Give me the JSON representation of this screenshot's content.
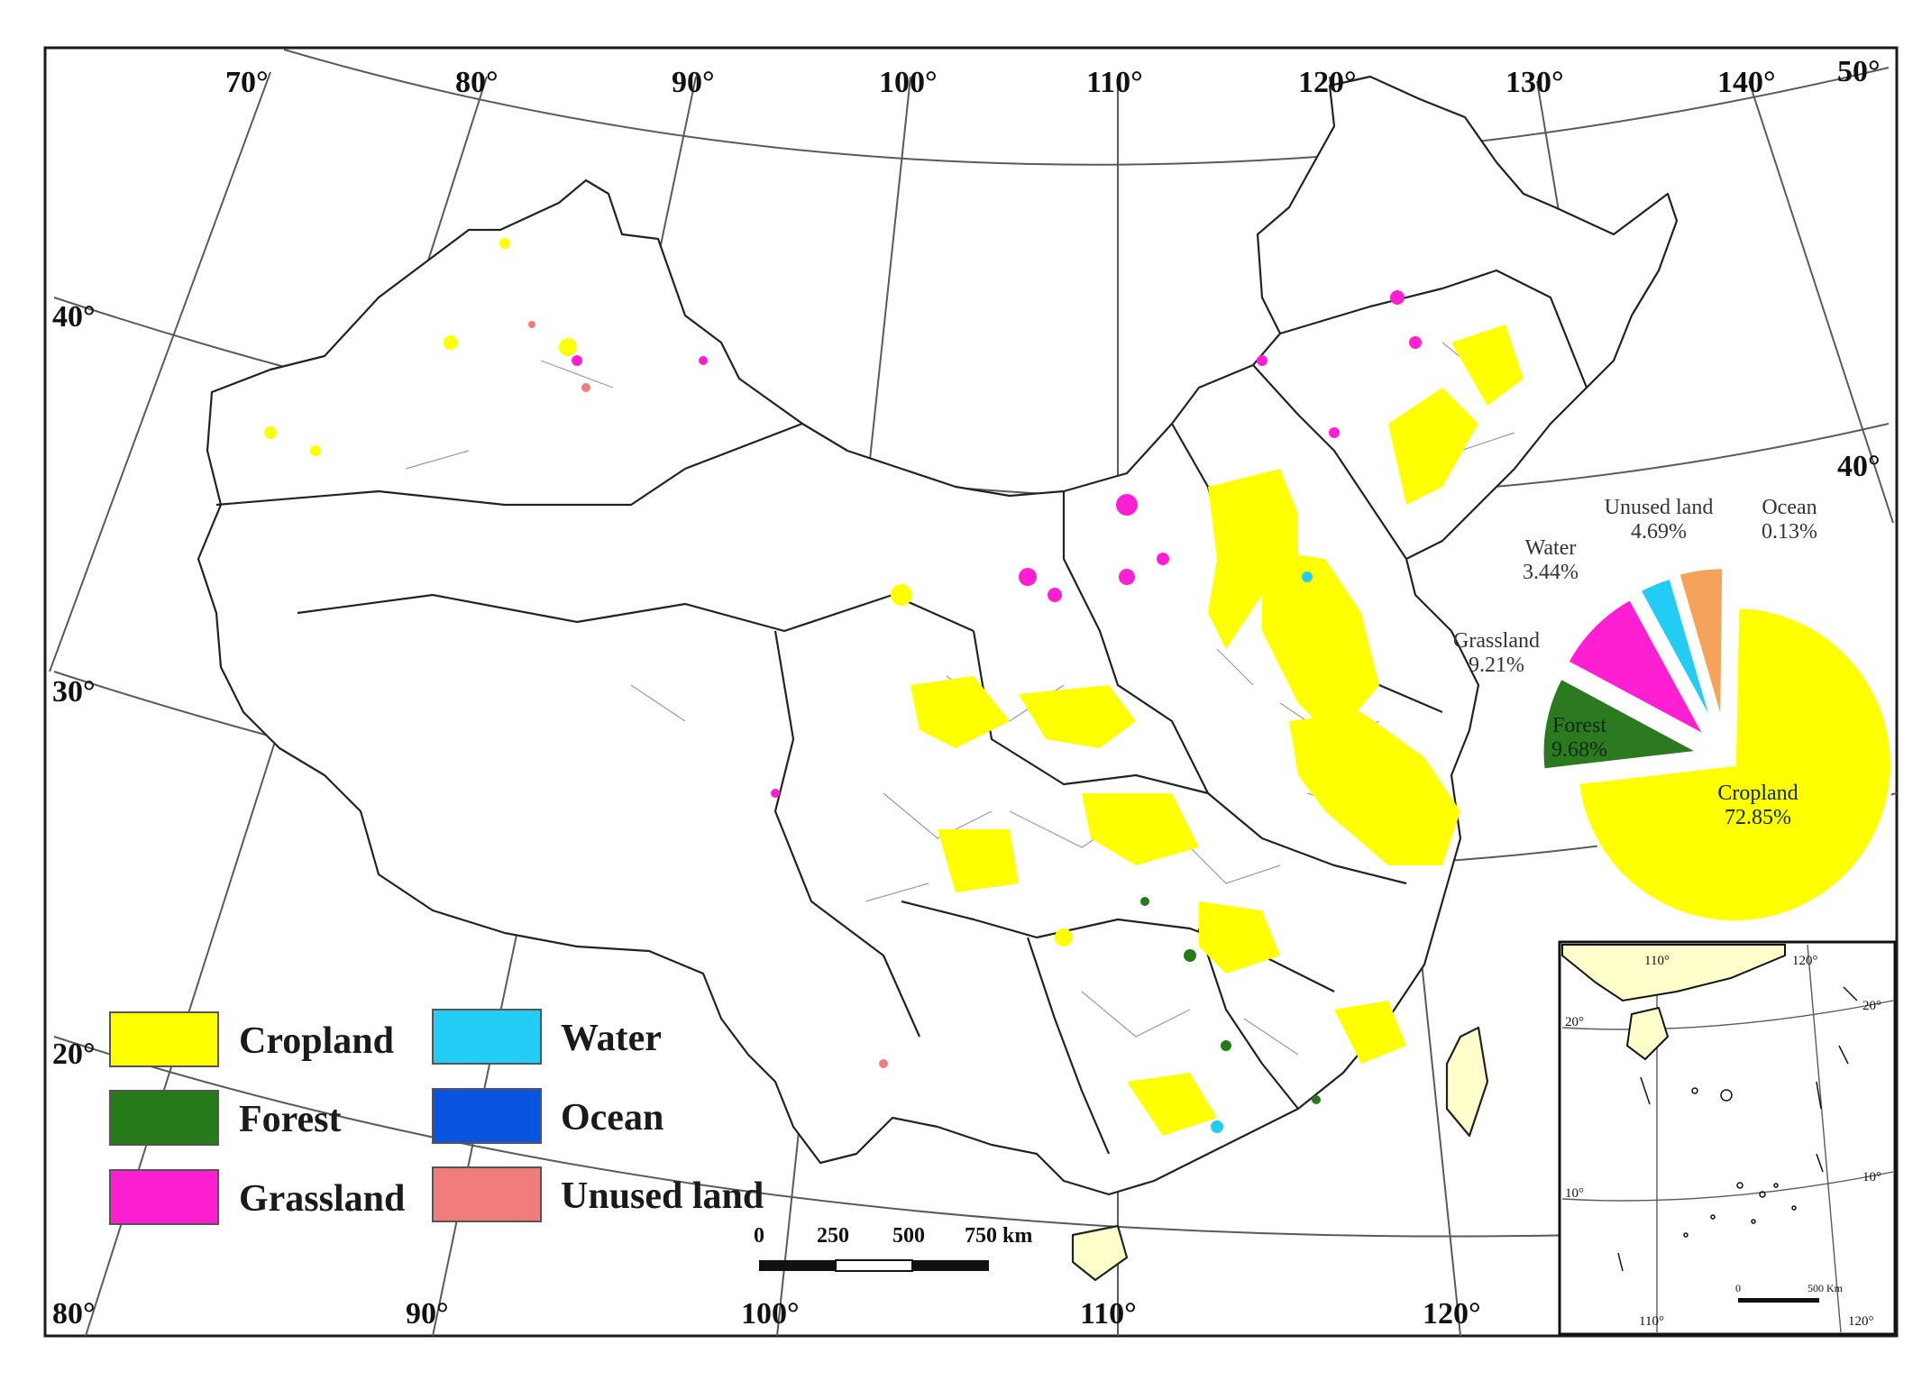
{
  "map": {
    "top_longitude_labels": [
      "70°",
      "80°",
      "90°",
      "100°",
      "110°",
      "120°",
      "130°",
      "140°"
    ],
    "bottom_longitude_labels": [
      "80°",
      "90°",
      "100°",
      "110°",
      "120°"
    ],
    "left_latitude_labels": [
      "40°",
      "30°",
      "20°"
    ],
    "right_latitude_labels": [
      "50°",
      "40°"
    ]
  },
  "legend": {
    "items": [
      {
        "label": "Cropland",
        "color": "#ffff00"
      },
      {
        "label": "Forest",
        "color": "#267a1a"
      },
      {
        "label": "Grassland",
        "color": "#ff1fd2"
      },
      {
        "label": "Water",
        "color": "#22ccf5"
      },
      {
        "label": "Ocean",
        "color": "#0a55e0"
      },
      {
        "label": "Unused land",
        "color": "#f07c7c"
      }
    ]
  },
  "scale_bar": {
    "labels": [
      "0",
      "250",
      "500",
      "750 km"
    ]
  },
  "pie": {
    "slices": [
      {
        "name": "Cropland",
        "percent_label": "72.85%",
        "value": 72.85,
        "color": "#ffff00"
      },
      {
        "name": "Forest",
        "percent_label": "9.68%",
        "value": 9.68,
        "color": "#2b7a1f"
      },
      {
        "name": "Grassland",
        "percent_label": "9.21%",
        "value": 9.21,
        "color": "#ff1fd2"
      },
      {
        "name": "Water",
        "percent_label": "3.44%",
        "value": 3.44,
        "color": "#22ccf5"
      },
      {
        "name": "Unused land",
        "percent_label": "4.69%",
        "value": 4.69,
        "color": "#f5a35a"
      },
      {
        "name": "Ocean",
        "percent_label": "0.13%",
        "value": 0.13,
        "color": "#777777"
      }
    ]
  },
  "inset": {
    "top_labels": [
      "110°",
      "120°"
    ],
    "bottom_labels": [
      "110°",
      "120°"
    ],
    "left_labels": [
      "20°",
      "10°"
    ],
    "right_labels": [
      "20°",
      "10°"
    ],
    "scale_labels": [
      "0",
      "500 Km"
    ]
  }
}
